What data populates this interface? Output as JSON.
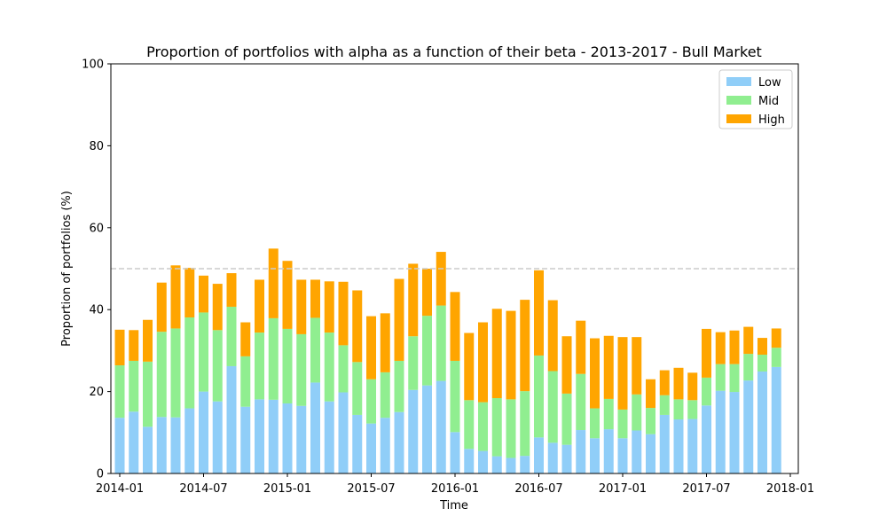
{
  "chart_data": {
    "type": "bar",
    "stacked": true,
    "title": "Proportion of portfolios with alpha as a function of their beta - 2013-2017 - Bull Market",
    "xlabel": "Time",
    "ylabel": "Proportion of portfolios (%)",
    "ylim": [
      0,
      100
    ],
    "yticks": [
      0,
      20,
      40,
      60,
      80,
      100
    ],
    "xticks": [
      "2014-01",
      "2014-07",
      "2015-01",
      "2015-07",
      "2016-01",
      "2016-07",
      "2017-01",
      "2017-07",
      "2018-01"
    ],
    "reference_line": {
      "y": 50,
      "style": "dashed",
      "color": "#cccccc"
    },
    "legend_position": "top-right",
    "grid": false,
    "categories": [
      "2014-01",
      "2014-02",
      "2014-03",
      "2014-04",
      "2014-05",
      "2014-06",
      "2014-07",
      "2014-08",
      "2014-09",
      "2014-10",
      "2014-11",
      "2014-12",
      "2015-01",
      "2015-02",
      "2015-03",
      "2015-04",
      "2015-05",
      "2015-06",
      "2015-07",
      "2015-08",
      "2015-09",
      "2015-10",
      "2015-11",
      "2015-12",
      "2016-01",
      "2016-02",
      "2016-03",
      "2016-04",
      "2016-05",
      "2016-06",
      "2016-07",
      "2016-08",
      "2016-09",
      "2016-10",
      "2016-11",
      "2016-12",
      "2017-01",
      "2017-02",
      "2017-03",
      "2017-04",
      "2017-05",
      "2017-06",
      "2017-07",
      "2017-08",
      "2017-09",
      "2017-10",
      "2017-11",
      "2017-12"
    ],
    "series": [
      {
        "name": "Low",
        "color": "#90cef8",
        "values": [
          13.6,
          15.1,
          11.4,
          13.8,
          13.7,
          15.9,
          20.0,
          17.6,
          26.2,
          16.3,
          18.1,
          18.0,
          17.1,
          16.5,
          22.2,
          17.6,
          19.8,
          14.3,
          12.2,
          13.6,
          15.0,
          20.4,
          21.5,
          22.6,
          10.1,
          6.0,
          5.5,
          4.2,
          3.8,
          4.3,
          8.8,
          7.5,
          7.0,
          10.6,
          8.6,
          10.8,
          8.6,
          10.5,
          9.6,
          14.3,
          13.2,
          13.3,
          16.6,
          20.2,
          19.9,
          22.7,
          24.9,
          26.0
        ]
      },
      {
        "name": "Mid",
        "color": "#90ee90",
        "values": [
          12.8,
          12.4,
          15.9,
          20.8,
          21.7,
          22.2,
          19.3,
          17.4,
          14.5,
          12.3,
          16.3,
          19.9,
          18.2,
          17.5,
          15.8,
          16.8,
          11.5,
          12.9,
          10.8,
          11.1,
          12.5,
          13.1,
          17.0,
          18.4,
          17.4,
          11.9,
          11.9,
          14.2,
          14.3,
          15.8,
          20.0,
          17.5,
          12.5,
          13.7,
          7.3,
          7.4,
          7.0,
          8.8,
          6.4,
          4.8,
          4.9,
          4.6,
          6.8,
          6.5,
          6.8,
          6.5,
          4.1,
          4.7
        ]
      },
      {
        "name": "High",
        "color": "#ffa500",
        "values": [
          8.7,
          7.5,
          10.2,
          12.0,
          15.4,
          12.1,
          9.0,
          11.3,
          8.2,
          8.3,
          12.9,
          17.0,
          16.6,
          13.3,
          9.3,
          12.5,
          15.5,
          17.5,
          15.4,
          14.4,
          20.0,
          17.7,
          11.5,
          13.1,
          16.8,
          16.4,
          19.5,
          21.8,
          21.6,
          22.3,
          20.8,
          17.3,
          14.0,
          13.0,
          17.1,
          15.4,
          17.7,
          14.0,
          7.0,
          6.1,
          7.7,
          6.7,
          11.9,
          7.8,
          8.2,
          6.6,
          4.1,
          4.7
        ]
      }
    ]
  }
}
